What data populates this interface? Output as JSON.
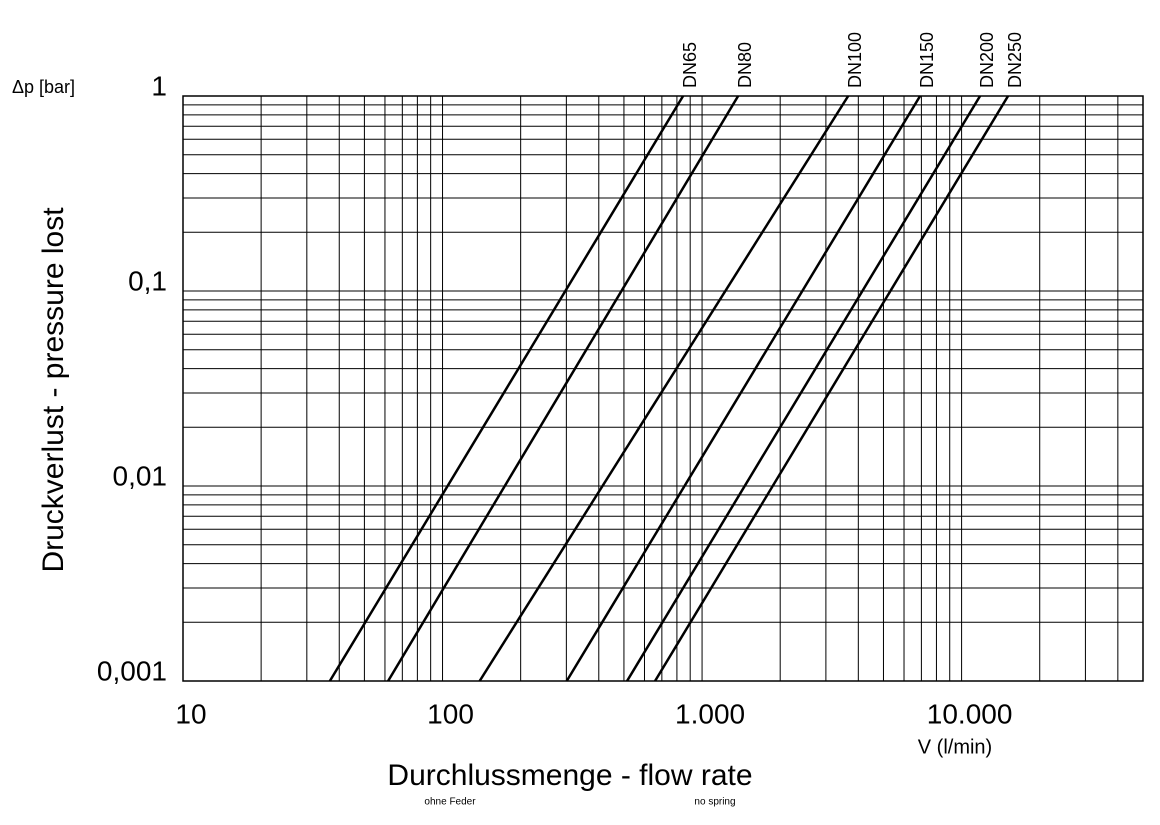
{
  "chart_data": {
    "type": "line",
    "y_unit_label": "Δp [bar]",
    "y_axis_label": "Druckverlust - pressure lost",
    "x_axis_label": "Durchlussmenge - flow rate",
    "x_unit_label": "V (l/min)",
    "note_left": "ohne Feder",
    "note_right": "no spring",
    "log_x": true,
    "log_y": true,
    "grid": true,
    "xlim": [
      10,
      50000
    ],
    "ylim": [
      0.001,
      1
    ],
    "xticks": [
      10,
      100,
      {
        "value": 1000,
        "label": "1.000"
      },
      {
        "value": 10000,
        "label": "10.000"
      }
    ],
    "yticks": [
      {
        "value": 0.001,
        "label": "0,001"
      },
      {
        "value": 0.01,
        "label": "0,01"
      },
      {
        "value": 0.1,
        "label": "0,1"
      },
      1
    ],
    "minor_xticks": [
      20,
      30,
      40,
      50,
      60,
      70,
      80,
      90,
      200,
      300,
      400,
      500,
      600,
      700,
      800,
      900,
      2000,
      3000,
      4000,
      5000,
      6000,
      7000,
      8000,
      9000,
      20000,
      30000,
      40000,
      50000
    ],
    "minor_yticks": [
      0.002,
      0.003,
      0.004,
      0.005,
      0.006,
      0.007,
      0.008,
      0.009,
      0.02,
      0.03,
      0.04,
      0.05,
      0.06,
      0.07,
      0.08,
      0.09,
      0.2,
      0.3,
      0.4,
      0.5,
      0.6,
      0.7,
      0.8,
      0.9
    ],
    "series": [
      {
        "name": "DN65",
        "color": "#000000",
        "x": [
          36.8,
          845
        ],
        "values": [
          0.001,
          1
        ]
      },
      {
        "name": "DN80",
        "color": "#000000",
        "x": [
          61.7,
          1377
        ],
        "values": [
          0.001,
          1
        ]
      },
      {
        "name": "DN100",
        "color": "#000000",
        "x": [
          139,
          3656
        ],
        "values": [
          0.001,
          1
        ]
      },
      {
        "name": "DN150",
        "color": "#000000",
        "x": [
          301,
          6920
        ],
        "values": [
          0.001,
          1
        ]
      },
      {
        "name": "DN200",
        "color": "#000000",
        "x": [
          514,
          11780
        ],
        "values": [
          0.001,
          1
        ]
      },
      {
        "name": "DN250",
        "color": "#000000",
        "x": [
          659,
          15100
        ],
        "values": [
          0.001,
          1
        ]
      }
    ]
  }
}
